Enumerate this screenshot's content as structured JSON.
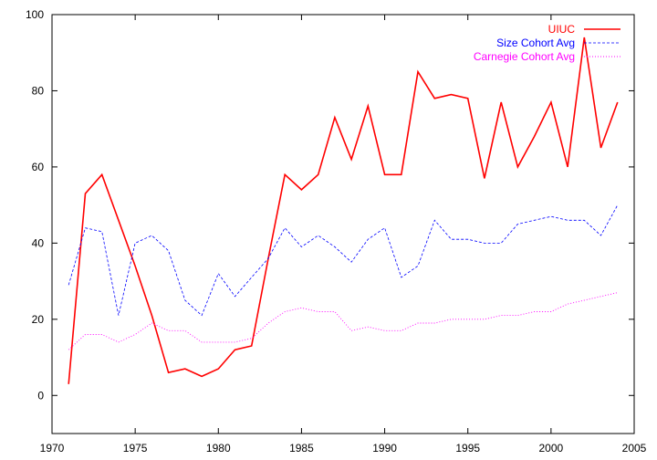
{
  "chart_data": {
    "type": "line",
    "title": "",
    "xlabel": "",
    "ylabel": "",
    "xlim": [
      1970,
      2005
    ],
    "ylim": [
      -10,
      100
    ],
    "xticks": [
      1970,
      1975,
      1980,
      1985,
      1990,
      1995,
      2000,
      2005
    ],
    "yticks": [
      0,
      20,
      40,
      60,
      80,
      100
    ],
    "grid": false,
    "legend": "top-right",
    "x": [
      1971,
      1972,
      1973,
      1974,
      1975,
      1976,
      1977,
      1978,
      1979,
      1980,
      1981,
      1982,
      1983,
      1984,
      1985,
      1986,
      1987,
      1988,
      1989,
      1990,
      1991,
      1992,
      1993,
      1994,
      1995,
      1996,
      1997,
      1998,
      1999,
      2000,
      2001,
      2002,
      2003,
      2004
    ],
    "series": [
      {
        "name": "UIUC",
        "color": "#ff0000",
        "dash": "solid",
        "values": [
          3,
          53,
          58,
          46,
          34,
          21,
          6,
          7,
          5,
          7,
          12,
          13,
          36,
          58,
          54,
          58,
          73,
          62,
          76,
          58,
          58,
          85,
          78,
          79,
          78,
          57,
          77,
          60,
          68,
          77,
          60,
          94,
          65,
          77
        ]
      },
      {
        "name": "Size Cohort Avg",
        "color": "#0000ff",
        "dash": "dashed",
        "values": [
          29,
          44,
          43,
          21,
          40,
          42,
          38,
          25,
          21,
          32,
          26,
          31,
          36,
          44,
          39,
          42,
          39,
          35,
          41,
          44,
          31,
          34,
          46,
          41,
          41,
          40,
          40,
          45,
          46,
          47,
          46,
          46,
          42,
          50
        ]
      },
      {
        "name": "Carnegie Cohort Avg",
        "color": "#ff00ff",
        "dash": "dotted",
        "values": [
          12,
          16,
          16,
          14,
          16,
          19,
          17,
          17,
          14,
          14,
          14,
          15,
          19,
          22,
          23,
          22,
          22,
          17,
          18,
          17,
          17,
          19,
          19,
          20,
          20,
          20,
          21,
          21,
          22,
          22,
          24,
          25,
          26,
          27
        ]
      }
    ]
  }
}
